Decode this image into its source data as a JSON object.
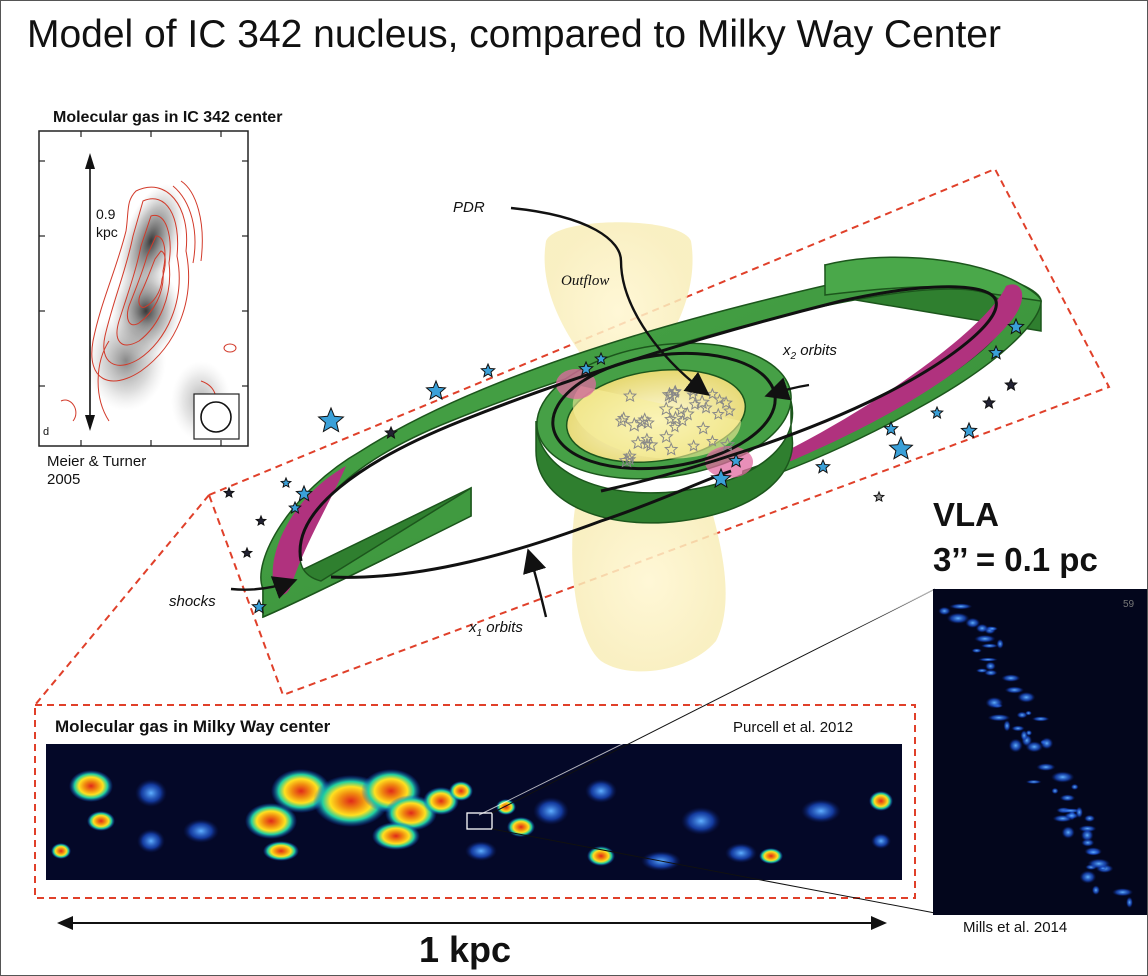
{
  "title": "Model of IC 342 nucleus, compared to Milky Way Center",
  "inset_ic342": {
    "heading": "Molecular gas in IC 342 center",
    "scale_value": "0.9",
    "scale_unit": "kpc",
    "panel_letter": "d",
    "credit_line1": "Meier & Turner",
    "credit_line2": "2005"
  },
  "model": {
    "pdr_label": "PDR",
    "outflow_label": "Outflow",
    "x2_label_pre": "x",
    "x2_sub": "2",
    "x2_label_post": " orbits",
    "x1_label_pre": "x",
    "x1_sub": "1",
    "x1_label_post": " orbits",
    "shocks_label": "shocks"
  },
  "milky_way": {
    "heading": "Molecular gas in Milky Way center",
    "credit": "Purcell et al. 2012",
    "scale_label": "1 kpc"
  },
  "vla": {
    "title_line1": "VLA",
    "title_line2": "3’’ =  0.1 pc",
    "corner_number": "59",
    "credit": "Mills et al. 2014"
  },
  "colors": {
    "ring_green": "#3e9a3e",
    "ring_dark": "#1c561c",
    "shock_magenta": "#b0327e",
    "outflow_yellow": "#fbf2c4",
    "dashed_red": "#e0402a",
    "map_background": "#040828"
  }
}
